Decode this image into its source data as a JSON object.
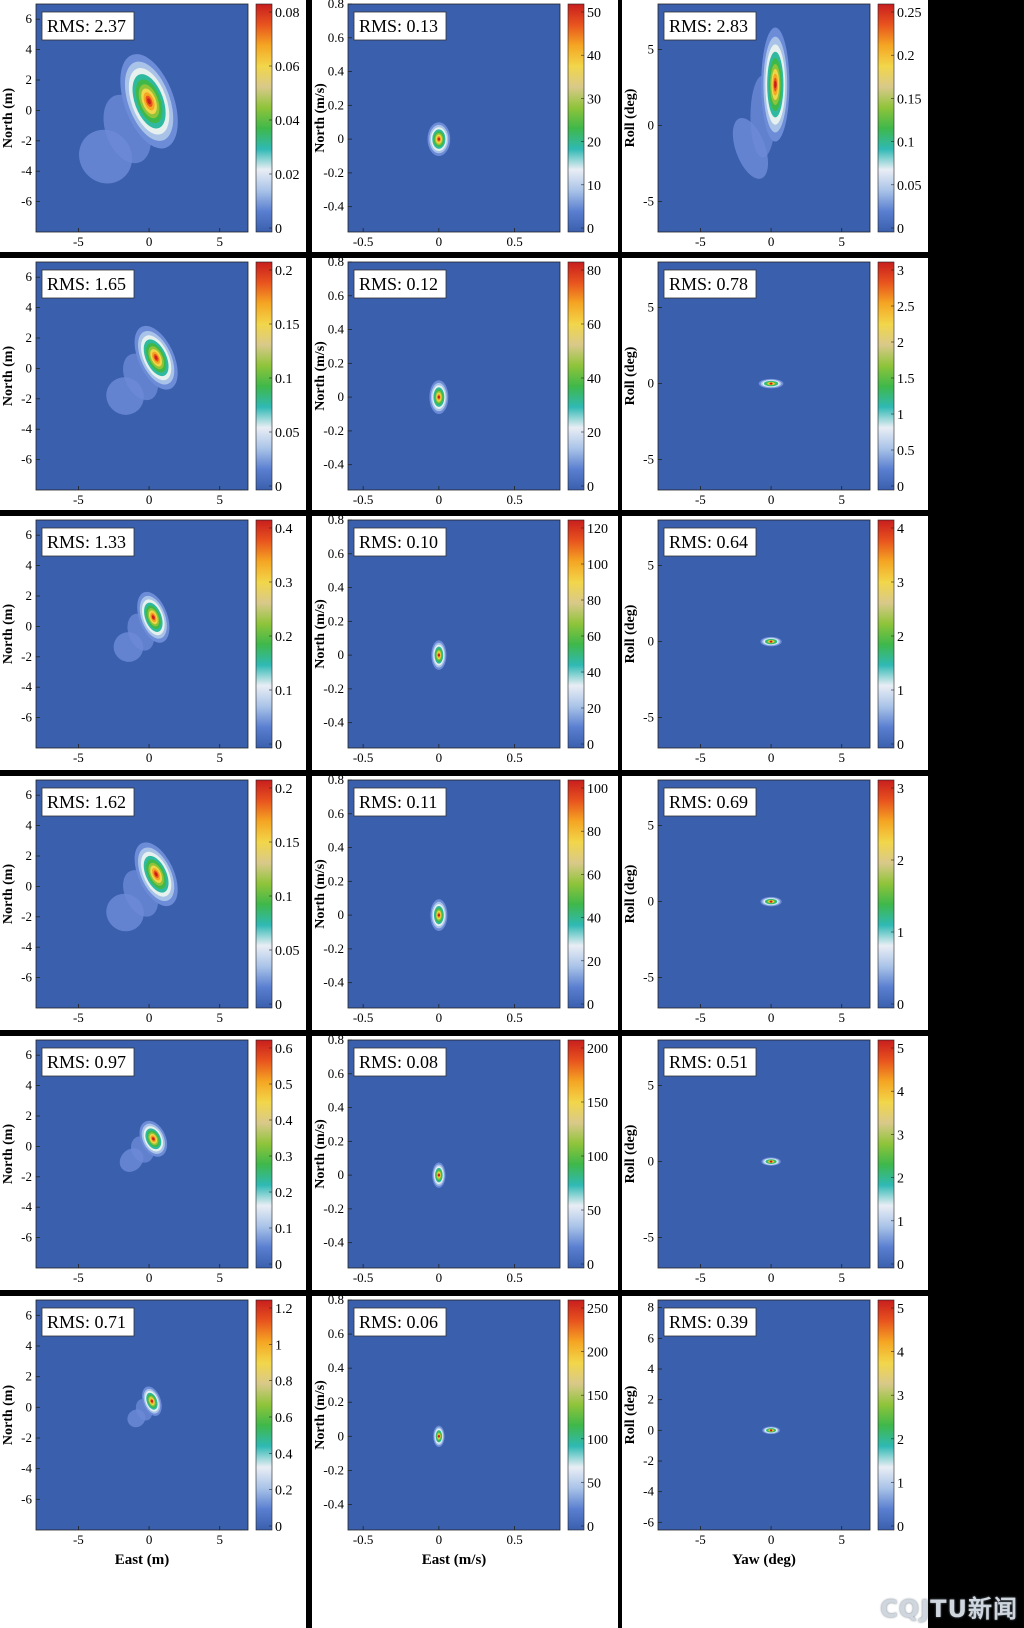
{
  "watermark": "CQJTU新闻",
  "colors": {
    "background": "#3a5fad",
    "colormap": [
      "#3a5fad",
      "#5a7fd0",
      "#a9c3e8",
      "#e9eef5",
      "#2fb9b4",
      "#3fb84a",
      "#8fc43a",
      "#d9c98a",
      "#f2d64a",
      "#f5a623",
      "#e8541e",
      "#c81e1e"
    ]
  },
  "chart_data": [
    {
      "type": "heatmap",
      "label": "RMS: 2.37",
      "xlim": [
        -8,
        7
      ],
      "ylim": [
        -8,
        7
      ],
      "xticks": [
        -5,
        0,
        5
      ],
      "yticks": [
        6,
        4,
        2,
        0,
        -2,
        -4,
        -6
      ],
      "ylabel": "North (m)",
      "xlabel": "",
      "cbar_ticks": [
        "0.08",
        "0.06",
        "0.04",
        "0.02",
        "0"
      ],
      "blob": {
        "cx": 0,
        "cy": 0.6,
        "sx": 1.4,
        "sy": 2.6,
        "rot": -20,
        "tail": true
      }
    },
    {
      "type": "heatmap",
      "label": "RMS: 0.13",
      "xlim": [
        -0.6,
        0.8
      ],
      "ylim": [
        -0.55,
        0.8
      ],
      "xticks": [
        -0.5,
        0,
        0.5
      ],
      "yticks": [
        0.8,
        0.6,
        0.4,
        0.2,
        0,
        -0.2,
        -0.4
      ],
      "ylabel": "North (m/s)",
      "xlabel": "",
      "cbar_ticks": [
        "50",
        "40",
        "30",
        "20",
        "10",
        "0"
      ],
      "blob": {
        "cx": 0,
        "cy": 0,
        "sx": 0.06,
        "sy": 0.08,
        "rot": 0,
        "tail": false
      }
    },
    {
      "type": "heatmap",
      "label": "RMS: 2.83",
      "xlim": [
        -8,
        7
      ],
      "ylim": [
        -7,
        8
      ],
      "xticks": [
        -5,
        0,
        5
      ],
      "yticks": [
        5,
        0,
        -5
      ],
      "ylabel": "Roll (deg)",
      "xlabel": "",
      "cbar_ticks": [
        "0.25",
        "0.2",
        "0.15",
        "0.1",
        "0.05",
        "0"
      ],
      "blob": {
        "cx": 0.3,
        "cy": 2.7,
        "sx": 0.8,
        "sy": 3,
        "rot": 0,
        "tail": true
      }
    },
    {
      "type": "heatmap",
      "label": "RMS: 1.65",
      "xlim": [
        -8,
        7
      ],
      "ylim": [
        -8,
        7
      ],
      "xticks": [
        -5,
        0,
        5
      ],
      "yticks": [
        6,
        4,
        2,
        0,
        -2,
        -4,
        -6
      ],
      "ylabel": "North (m)",
      "xlabel": "",
      "cbar_ticks": [
        "0.2",
        "0.15",
        "0.1",
        "0.05",
        "0"
      ],
      "blob": {
        "cx": 0.5,
        "cy": 0.7,
        "sx": 1,
        "sy": 1.8,
        "rot": -25,
        "tail": true
      }
    },
    {
      "type": "heatmap",
      "label": "RMS: 0.12",
      "xlim": [
        -0.6,
        0.8
      ],
      "ylim": [
        -0.55,
        0.8
      ],
      "xticks": [
        -0.5,
        0,
        0.5
      ],
      "yticks": [
        0.8,
        0.6,
        0.4,
        0.2,
        0,
        -0.2,
        -0.4
      ],
      "ylabel": "North (m/s)",
      "xlabel": "",
      "cbar_ticks": [
        "80",
        "60",
        "40",
        "20",
        "0"
      ],
      "blob": {
        "cx": 0,
        "cy": 0,
        "sx": 0.05,
        "sy": 0.08,
        "rot": 0,
        "tail": false
      }
    },
    {
      "type": "heatmap",
      "label": "RMS: 0.78",
      "xlim": [
        -8,
        7
      ],
      "ylim": [
        -7,
        8
      ],
      "xticks": [
        -5,
        0,
        5
      ],
      "yticks": [
        5,
        0,
        -5
      ],
      "ylabel": "Roll (deg)",
      "xlabel": "",
      "cbar_ticks": [
        "3",
        "2.5",
        "2",
        "1.5",
        "1",
        "0.5",
        "0"
      ],
      "blob": {
        "cx": 0,
        "cy": 0,
        "sx": 0.7,
        "sy": 0.25,
        "rot": 0,
        "tail": false
      }
    },
    {
      "type": "heatmap",
      "label": "RMS: 1.33",
      "xlim": [
        -8,
        7
      ],
      "ylim": [
        -8,
        7
      ],
      "xticks": [
        -5,
        0,
        5
      ],
      "yticks": [
        6,
        4,
        2,
        0,
        -2,
        -4,
        -6
      ],
      "ylabel": "North (m)",
      "xlabel": "",
      "cbar_ticks": [
        "0.4",
        "0.3",
        "0.2",
        "0.1",
        "0"
      ],
      "blob": {
        "cx": 0.3,
        "cy": 0.6,
        "sx": 0.8,
        "sy": 1.4,
        "rot": -20,
        "tail": true
      }
    },
    {
      "type": "heatmap",
      "label": "RMS: 0.10",
      "xlim": [
        -0.6,
        0.8
      ],
      "ylim": [
        -0.55,
        0.8
      ],
      "xticks": [
        -0.5,
        0,
        0.5
      ],
      "yticks": [
        0.8,
        0.6,
        0.4,
        0.2,
        0,
        -0.2,
        -0.4
      ],
      "ylabel": "North (m/s)",
      "xlabel": "",
      "cbar_ticks": [
        "120",
        "100",
        "80",
        "60",
        "40",
        "20",
        "0"
      ],
      "blob": {
        "cx": 0,
        "cy": 0,
        "sx": 0.04,
        "sy": 0.07,
        "rot": 0,
        "tail": false
      }
    },
    {
      "type": "heatmap",
      "label": "RMS: 0.64",
      "xlim": [
        -8,
        7
      ],
      "ylim": [
        -7,
        8
      ],
      "xticks": [
        -5,
        0,
        5
      ],
      "yticks": [
        5,
        0,
        -5
      ],
      "ylabel": "Roll (deg)",
      "xlabel": "",
      "cbar_ticks": [
        "4",
        "3",
        "2",
        "1",
        "0"
      ],
      "blob": {
        "cx": 0,
        "cy": 0,
        "sx": 0.6,
        "sy": 0.25,
        "rot": 0,
        "tail": false
      }
    },
    {
      "type": "heatmap",
      "label": "RMS: 1.62",
      "xlim": [
        -8,
        7
      ],
      "ylim": [
        -8,
        7
      ],
      "xticks": [
        -5,
        0,
        5
      ],
      "yticks": [
        6,
        4,
        2,
        0,
        -2,
        -4,
        -6
      ],
      "ylabel": "North (m)",
      "xlabel": "",
      "cbar_ticks": [
        "0.2",
        "0.15",
        "0.1",
        "0.05",
        "0"
      ],
      "blob": {
        "cx": 0.5,
        "cy": 0.8,
        "sx": 1,
        "sy": 1.8,
        "rot": -25,
        "tail": true
      }
    },
    {
      "type": "heatmap",
      "label": "RMS: 0.11",
      "xlim": [
        -0.6,
        0.8
      ],
      "ylim": [
        -0.55,
        0.8
      ],
      "xticks": [
        -0.5,
        0,
        0.5
      ],
      "yticks": [
        0.8,
        0.6,
        0.4,
        0.2,
        0,
        -0.2,
        -0.4
      ],
      "ylabel": "North (m/s)",
      "xlabel": "",
      "cbar_ticks": [
        "100",
        "80",
        "60",
        "40",
        "20",
        "0"
      ],
      "blob": {
        "cx": 0,
        "cy": 0,
        "sx": 0.045,
        "sy": 0.075,
        "rot": 0,
        "tail": false
      }
    },
    {
      "type": "heatmap",
      "label": "RMS: 0.69",
      "xlim": [
        -8,
        7
      ],
      "ylim": [
        -7,
        8
      ],
      "xticks": [
        -5,
        0,
        5
      ],
      "yticks": [
        5,
        0,
        -5
      ],
      "ylabel": "Roll (deg)",
      "xlabel": "",
      "cbar_ticks": [
        "3",
        "2",
        "1",
        "0"
      ],
      "blob": {
        "cx": 0,
        "cy": 0,
        "sx": 0.6,
        "sy": 0.25,
        "rot": 0,
        "tail": false
      }
    },
    {
      "type": "heatmap",
      "label": "RMS: 0.97",
      "xlim": [
        -8,
        7
      ],
      "ylim": [
        -8,
        7
      ],
      "xticks": [
        -5,
        0,
        5
      ],
      "yticks": [
        6,
        4,
        2,
        0,
        -2,
        -4,
        -6
      ],
      "ylabel": "North (m)",
      "xlabel": "",
      "cbar_ticks": [
        "0.6",
        "0.5",
        "0.4",
        "0.3",
        "0.2",
        "0.1",
        "0"
      ],
      "blob": {
        "cx": 0.3,
        "cy": 0.5,
        "sx": 0.7,
        "sy": 1,
        "rot": -25,
        "tail": true
      }
    },
    {
      "type": "heatmap",
      "label": "RMS: 0.08",
      "xlim": [
        -0.6,
        0.8
      ],
      "ylim": [
        -0.55,
        0.8
      ],
      "xticks": [
        -0.5,
        0,
        0.5
      ],
      "yticks": [
        0.8,
        0.6,
        0.4,
        0.2,
        0,
        -0.2,
        -0.4
      ],
      "ylabel": "North (m/s)",
      "xlabel": "",
      "cbar_ticks": [
        "200",
        "150",
        "100",
        "50",
        "0"
      ],
      "blob": {
        "cx": 0,
        "cy": 0,
        "sx": 0.035,
        "sy": 0.06,
        "rot": 0,
        "tail": false
      }
    },
    {
      "type": "heatmap",
      "label": "RMS: 0.51",
      "xlim": [
        -8,
        7
      ],
      "ylim": [
        -7,
        8
      ],
      "xticks": [
        -5,
        0,
        5
      ],
      "yticks": [
        5,
        0,
        -5
      ],
      "ylabel": "Roll (deg)",
      "xlabel": "",
      "cbar_ticks": [
        "5",
        "4",
        "3",
        "2",
        "1",
        "0"
      ],
      "blob": {
        "cx": 0,
        "cy": 0,
        "sx": 0.55,
        "sy": 0.22,
        "rot": 0,
        "tail": false
      }
    },
    {
      "type": "heatmap",
      "label": "RMS: 0.71",
      "xlim": [
        -8,
        7
      ],
      "ylim": [
        -8,
        7
      ],
      "xticks": [
        -5,
        0,
        5
      ],
      "yticks": [
        6,
        4,
        2,
        0,
        -2,
        -4,
        -6
      ],
      "ylabel": "North (m)",
      "xlabel": "East (m)",
      "cbar_ticks": [
        "1.2",
        "1",
        "0.8",
        "0.6",
        "0.4",
        "0.2",
        "0"
      ],
      "blob": {
        "cx": 0.2,
        "cy": 0.4,
        "sx": 0.5,
        "sy": 0.8,
        "rot": -20,
        "tail": true
      }
    },
    {
      "type": "heatmap",
      "label": "RMS: 0.06",
      "xlim": [
        -0.6,
        0.8
      ],
      "ylim": [
        -0.55,
        0.8
      ],
      "xticks": [
        -0.5,
        0,
        0.5
      ],
      "yticks": [
        0.8,
        0.6,
        0.4,
        0.2,
        0,
        -0.2,
        -0.4
      ],
      "ylabel": "North (m/s)",
      "xlabel": "East (m/s)",
      "cbar_ticks": [
        "250",
        "200",
        "150",
        "100",
        "50",
        "0"
      ],
      "blob": {
        "cx": 0,
        "cy": 0,
        "sx": 0.03,
        "sy": 0.05,
        "rot": 0,
        "tail": false
      }
    },
    {
      "type": "heatmap",
      "label": "RMS: 0.39",
      "xlim": [
        -8,
        7
      ],
      "ylim": [
        -6.5,
        8.5
      ],
      "xticks": [
        -5,
        0,
        5
      ],
      "yticks": [
        8,
        6,
        4,
        2,
        0,
        -2,
        -4,
        -6
      ],
      "ylabel": "Roll (deg)",
      "xlabel": "Yaw (deg)",
      "cbar_ticks": [
        "5",
        "4",
        "3",
        "2",
        "1",
        "0"
      ],
      "blob": {
        "cx": 0,
        "cy": 0,
        "sx": 0.5,
        "sy": 0.2,
        "rot": 0,
        "tail": false
      }
    }
  ]
}
